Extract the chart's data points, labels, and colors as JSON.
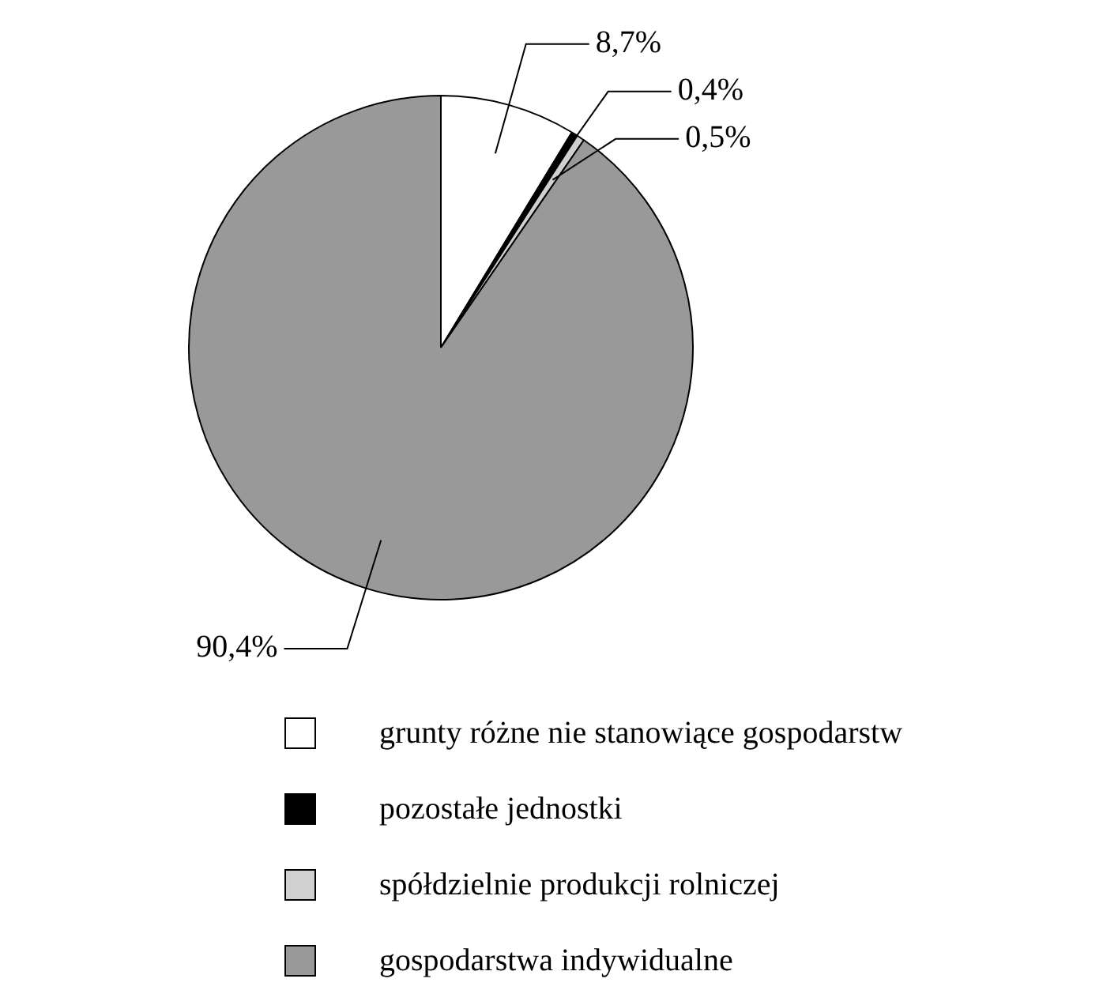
{
  "chart_data": {
    "type": "pie",
    "categories": [
      "grunty różne nie stanowiące gospodarstw",
      "pozostałe jednostki",
      "spółdzielnie produkcji rolniczej",
      "gospodarstwa indywidualne"
    ],
    "values": [
      8.7,
      0.4,
      0.5,
      90.4
    ],
    "colors": [
      "#ffffff",
      "#000000",
      "#d0d0d0",
      "#999999"
    ],
    "value_labels": [
      "8,7%",
      "0,4%",
      "0,5%",
      "90,4%"
    ],
    "legend": "bottom"
  }
}
